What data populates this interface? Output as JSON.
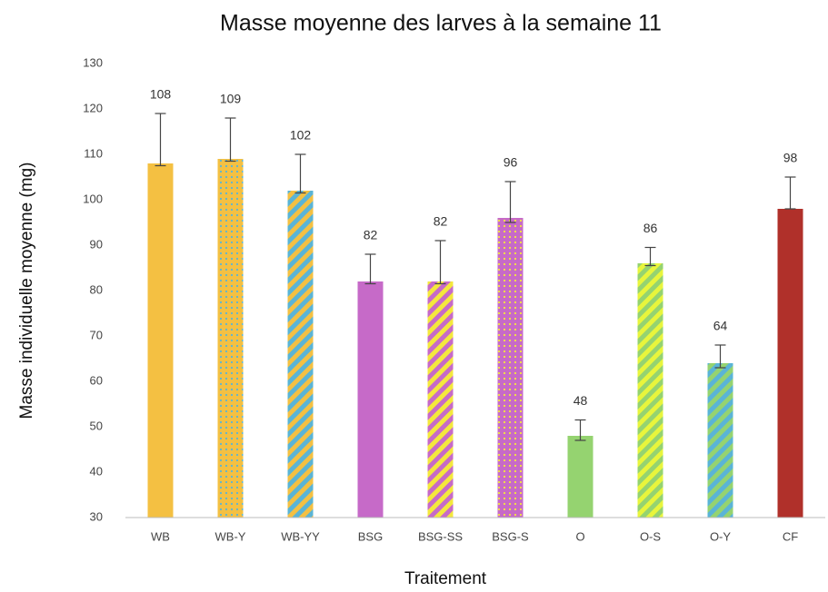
{
  "chart_data": {
    "type": "bar",
    "title": "Masse moyenne des larves à la semaine 11",
    "xlabel": "Traitement",
    "ylabel": "Masse individuelle moyenne (mg)",
    "categories": [
      "WB",
      "WB-Y",
      "WB-YY",
      "BSG",
      "BSG-SS",
      "BSG-S",
      "O",
      "O-S",
      "O-Y",
      "CF"
    ],
    "values": [
      108,
      109,
      102,
      82,
      82,
      96,
      48,
      86,
      64,
      98
    ],
    "error_plus": [
      11,
      9,
      8,
      6,
      9,
      8,
      3.5,
      3.5,
      4,
      7
    ],
    "error_minus": [
      0.5,
      0.5,
      0.5,
      0.5,
      0.5,
      1,
      1,
      0.5,
      1,
      0
    ],
    "colors": [
      "#f4c042",
      "#f4c042",
      "#f4c042",
      "#c66ac8",
      "#c66ac8",
      "#c66ac8",
      "#95d370",
      "#e8f53c",
      "#95d370",
      "#b0302a"
    ],
    "patterns": [
      null,
      "dots",
      "stripes",
      null,
      "stripes",
      "dots",
      null,
      "stripes",
      "stripes",
      null
    ],
    "pattern_colors": [
      null,
      "#5ab4d6",
      "#5ab4d6",
      null,
      "#f4e83c",
      "#f4e83c",
      null,
      "#95d370",
      "#5ab4d6",
      null
    ],
    "ylim": [
      30,
      130
    ],
    "yticks": [
      30,
      40,
      50,
      60,
      70,
      80,
      90,
      100,
      110,
      120,
      130
    ],
    "grid": false
  }
}
